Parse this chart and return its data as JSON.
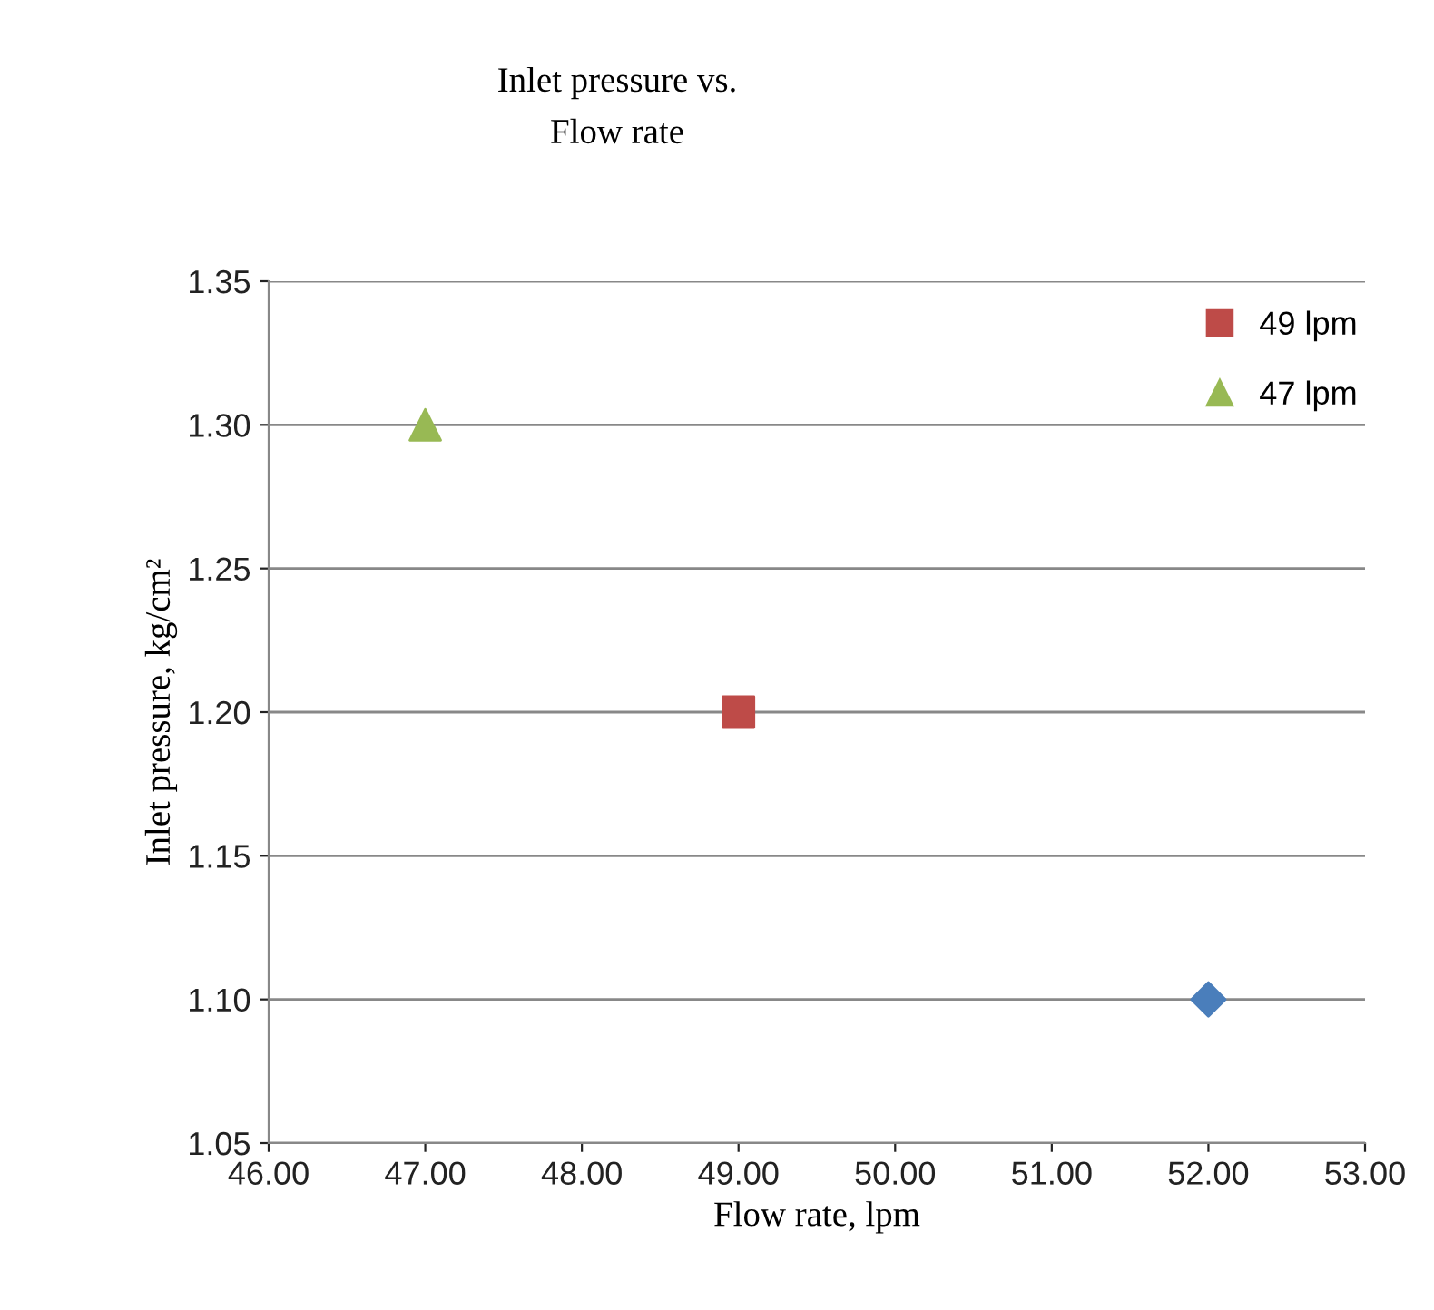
{
  "chart_data": {
    "type": "scatter",
    "title": "Inlet pressure vs.\nFlow rate",
    "xlabel": "Flow rate, lpm",
    "ylabel": "Inlet pressure, kg/cm²",
    "series": [
      {
        "color": "#4a7ebb",
        "marker": "diamond",
        "x": [
          52.0
        ],
        "values": [
          1.1
        ]
      },
      {
        "name": "49 lpm",
        "color": "#be4b48",
        "marker": "square",
        "x": [
          49.0
        ],
        "values": [
          1.2
        ]
      },
      {
        "name": "47 lpm",
        "color": "#98b954",
        "marker": "triangle",
        "x": [
          47.0
        ],
        "values": [
          1.3
        ]
      }
    ],
    "xlim": [
      46,
      53
    ],
    "xticks": [
      {
        "value": 46,
        "label": "46.00"
      },
      {
        "value": 47,
        "label": "47.00"
      },
      {
        "value": 48,
        "label": "48.00"
      },
      {
        "value": 49,
        "label": "49.00"
      },
      {
        "value": 50,
        "label": "50.00"
      },
      {
        "value": 51,
        "label": "51.00"
      },
      {
        "value": 52,
        "label": "52.00"
      },
      {
        "value": 53,
        "label": "53.00"
      }
    ],
    "ylim": [
      1.05,
      1.35
    ],
    "yticks": [
      {
        "value": 1.05,
        "label": "1.05"
      },
      {
        "value": 1.1,
        "label": "1.10"
      },
      {
        "value": 1.15,
        "label": "1.15"
      },
      {
        "value": 1.2,
        "label": "1.20"
      },
      {
        "value": 1.25,
        "label": "1.25"
      },
      {
        "value": 1.3,
        "label": "1.30"
      },
      {
        "value": 1.35,
        "label": "1.35"
      }
    ],
    "grid": "y",
    "legend": "top right"
  }
}
